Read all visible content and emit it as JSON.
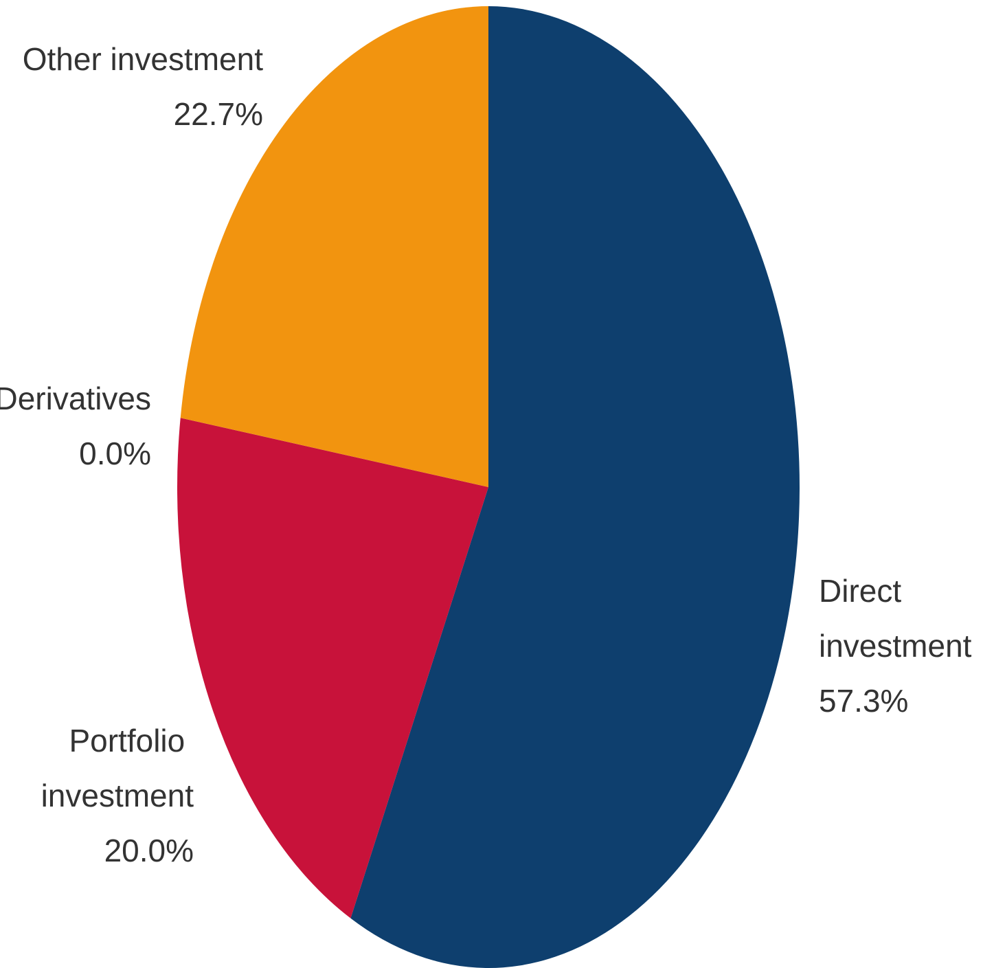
{
  "chart_data": {
    "type": "pie",
    "categories": [
      "Direct investment",
      "Portfolio investment",
      "Derivatives",
      "Other investment"
    ],
    "values": [
      57.3,
      20.0,
      0.0,
      22.7
    ],
    "value_labels": [
      "57.3%",
      "20.0%",
      "0.0%",
      "22.7%"
    ],
    "colors": [
      "#0e3f6e",
      "#c8123a",
      null,
      "#f2940f"
    ]
  }
}
